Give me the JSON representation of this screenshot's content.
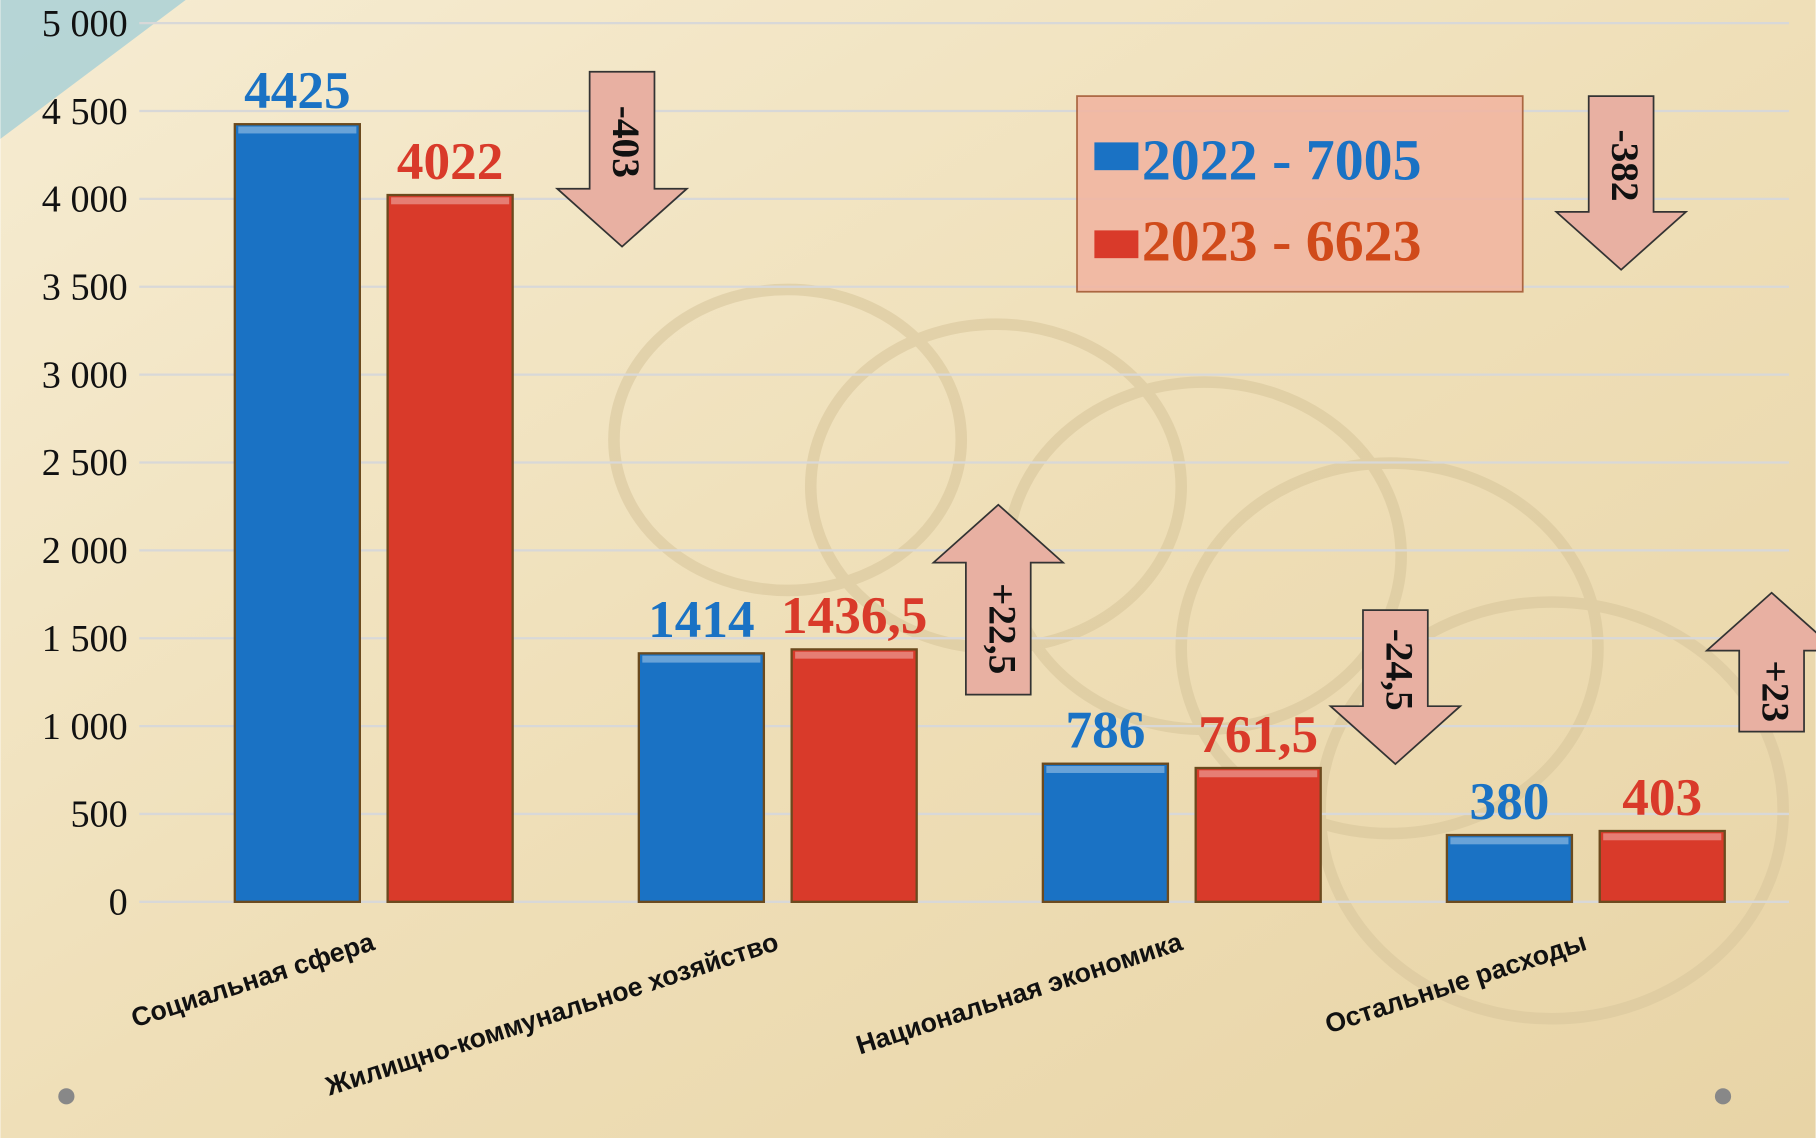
{
  "chart_data": {
    "type": "bar",
    "categories": [
      "Социальная сфера",
      "Жилищно-коммунальное хозяйство",
      "Национальная экономика",
      "Остальные расходы"
    ],
    "series": [
      {
        "name": "2022 - 7005",
        "color": "#1a72c4",
        "values": [
          4425,
          1414,
          786,
          380
        ],
        "value_labels": [
          "4425",
          "1414",
          "786",
          "380"
        ]
      },
      {
        "name": "2023 - 6623",
        "color": "#d93a2a",
        "values": [
          4022,
          1436.5,
          761.5,
          403
        ],
        "value_labels": [
          "4022",
          "1436,5",
          "761,5",
          "403"
        ]
      }
    ],
    "ylim": [
      0,
      5000
    ],
    "yticks": [
      0,
      500,
      {
        "value": 1000,
        "label": "1 000"
      },
      {
        "value": 1500,
        "label": "1 500"
      },
      {
        "value": 2000,
        "label": "2 000"
      },
      {
        "value": 2500,
        "label": "2 500"
      },
      {
        "value": 3000,
        "label": "3 000"
      },
      {
        "value": 3500,
        "label": "3 500"
      },
      {
        "value": 4000,
        "label": "4 000"
      },
      {
        "value": 4500,
        "label": "4 500"
      },
      {
        "value": 5000,
        "label": "5 000"
      }
    ],
    "grid": true,
    "annotations": [
      {
        "text": "-403",
        "direction": "down"
      },
      {
        "text": "+22,5",
        "direction": "up"
      },
      {
        "text": "-24,5",
        "direction": "down"
      },
      {
        "text": "+23",
        "direction": "up"
      },
      {
        "text": "-382",
        "direction": "down"
      }
    ]
  }
}
